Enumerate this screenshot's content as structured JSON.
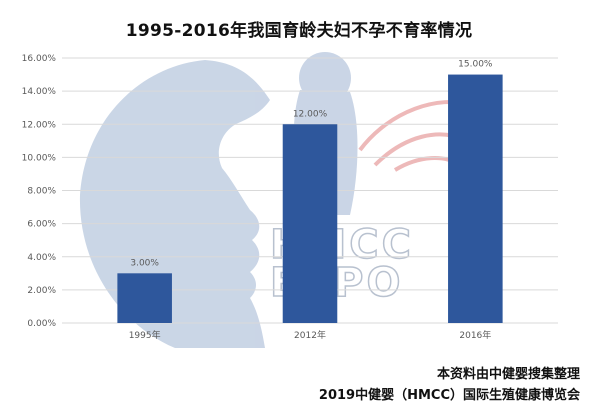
{
  "chart_data": {
    "type": "bar",
    "title": "1995-2016年我国育龄夫妇不孕不育率情况",
    "categories": [
      "1995年",
      "2012年",
      "2016年"
    ],
    "values": [
      3.0,
      12.0,
      15.0
    ],
    "data_labels": [
      "3.00%",
      "12.00%",
      "15.00%"
    ],
    "y_ticks": [
      "0.00%",
      "2.00%",
      "4.00%",
      "6.00%",
      "8.00%",
      "10.00%",
      "12.00%",
      "14.00%",
      "16.00%"
    ],
    "ylim": [
      0,
      16
    ],
    "grid": true,
    "legend": "none",
    "bar_color": "#2e579c"
  },
  "watermark": {
    "text_line1": "HMCC",
    "text_line2": "EXPO"
  },
  "footer": {
    "line1": "本资料由中健婴搜集整理",
    "line2": "2019中健婴（HMCC）国际生殖健康博览会"
  }
}
